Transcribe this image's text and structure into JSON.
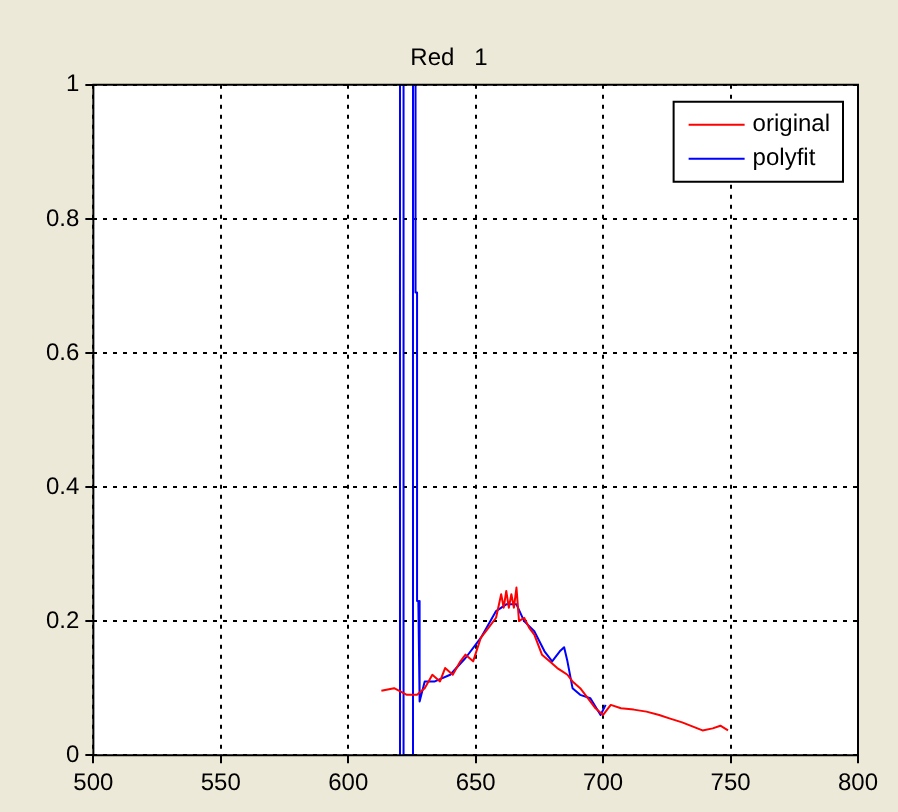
{
  "chart_data": {
    "type": "line",
    "title": "Red   1",
    "xlim": [
      500,
      800
    ],
    "xticks": [
      500,
      550,
      600,
      650,
      700,
      750,
      800
    ],
    "ylim": [
      0,
      1
    ],
    "yticks": [
      0,
      {
        "value": 0.2,
        "label": "0.2"
      },
      {
        "value": 0.4,
        "label": "0.4"
      },
      {
        "value": 0.6,
        "label": "0.6"
      },
      {
        "value": 0.8,
        "label": "0.8"
      },
      1
    ],
    "grid": true,
    "legend": "top right",
    "line_style": "solid",
    "marker": "none",
    "series": [
      {
        "name": "original",
        "color": "#ff0000",
        "x": [
          613,
          618,
          623,
          627,
          630,
          633,
          636,
          638,
          641,
          644,
          646,
          649,
          652,
          655,
          658,
          660,
          661,
          662,
          663,
          664,
          665,
          666,
          667,
          669,
          671,
          673,
          676,
          679,
          682,
          684,
          686,
          688,
          691,
          694,
          697,
          700,
          703,
          707,
          712,
          717,
          722,
          726,
          731,
          735,
          739,
          743,
          746,
          749
        ],
        "values": [
          0.096,
          0.1,
          0.09,
          0.09,
          0.1,
          0.12,
          0.11,
          0.13,
          0.12,
          0.14,
          0.15,
          0.14,
          0.175,
          0.19,
          0.205,
          0.24,
          0.22,
          0.245,
          0.22,
          0.24,
          0.22,
          0.25,
          0.2,
          0.205,
          0.19,
          0.18,
          0.15,
          0.14,
          0.13,
          0.125,
          0.12,
          0.11,
          0.1,
          0.085,
          0.07,
          0.06,
          0.075,
          0.07,
          0.068,
          0.065,
          0.06,
          0.055,
          0.049,
          0.043,
          0.037,
          0.04,
          0.044,
          0.037
        ]
      },
      {
        "name": "polyfit",
        "color": "#0000ff",
        "x": [
          620.3,
          620.3,
          621.7,
          621.7,
          625.4,
          625.4,
          626.4,
          626.4,
          627,
          627,
          627.5,
          628,
          630,
          634,
          640,
          646,
          652,
          658,
          662,
          666,
          669,
          673,
          677,
          680,
          683,
          684.7,
          686,
          688,
          691,
          695,
          699,
          701
        ],
        "values": [
          0,
          1,
          1,
          0,
          0,
          1,
          1,
          0.69,
          0.69,
          0.23,
          0.23,
          0.08,
          0.11,
          0.11,
          0.12,
          0.145,
          0.175,
          0.215,
          0.225,
          0.225,
          0.2,
          0.185,
          0.155,
          0.14,
          0.155,
          0.161,
          0.14,
          0.1,
          0.09,
          0.085,
          0.06,
          0.075
        ]
      }
    ]
  }
}
